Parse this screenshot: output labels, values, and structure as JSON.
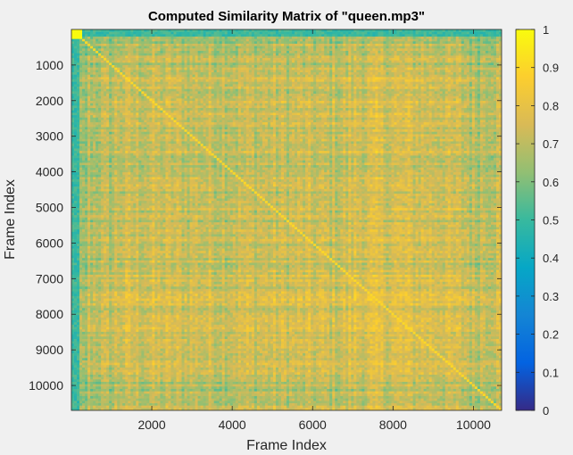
{
  "chart_data": {
    "type": "heatmap",
    "title": "Computed Similarity Matrix of \"queen.mp3\"",
    "xlabel": "Frame Index",
    "ylabel": "Frame Index",
    "xlim": [
      1,
      10700
    ],
    "ylim": [
      1,
      10700
    ],
    "x_ticks": [
      2000,
      4000,
      6000,
      8000,
      10000
    ],
    "y_ticks": [
      1000,
      2000,
      3000,
      4000,
      5000,
      6000,
      7000,
      8000,
      9000,
      10000
    ],
    "y_direction": "reverse",
    "colormap": "parula",
    "color_limits": [
      0,
      1
    ],
    "colorbar_ticks": [
      0,
      0.1,
      0.2,
      0.3,
      0.4,
      0.5,
      0.6,
      0.7,
      0.8,
      0.9,
      1
    ],
    "colorbar_placement": "right",
    "diagonal_value": 1,
    "typical_offdiagonal_range": [
      0.55,
      0.85
    ],
    "grid": false
  }
}
